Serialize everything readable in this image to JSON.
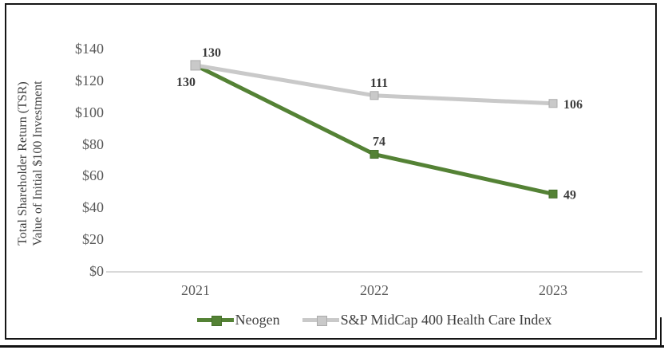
{
  "chart_data": {
    "type": "line",
    "title": "",
    "categories": [
      "2021",
      "2022",
      "2023"
    ],
    "series": [
      {
        "name": "Neogen",
        "values": [
          130,
          74,
          49
        ],
        "color": "#548235",
        "marker": "square",
        "marker_stroke": "#46702c",
        "label_placements": [
          "below-left",
          "above",
          "right"
        ]
      },
      {
        "name": "S&P MidCap 400 Health Care Index",
        "values": [
          130,
          111,
          106
        ],
        "color": "#c9c9c9",
        "marker": "square",
        "marker_stroke": "#ababab",
        "label_placements": [
          "above-right",
          "above",
          "right"
        ]
      }
    ],
    "data_labels": {
      "neogen": [
        "130",
        "74",
        "49"
      ],
      "sp_midcap": [
        "130",
        "111",
        "106"
      ]
    },
    "ylabel_lines": [
      "Total Shareholder Return (TSR)",
      "Value of Initial $100 Investment"
    ],
    "xlabel": "",
    "y_ticks": [
      {
        "label": "$0",
        "value": 0
      },
      {
        "label": "$20",
        "value": 20
      },
      {
        "label": "$40",
        "value": 40
      },
      {
        "label": "$60",
        "value": 60
      },
      {
        "label": "$80",
        "value": 80
      },
      {
        "label": "$100",
        "value": 100
      },
      {
        "label": "$120",
        "value": 120
      },
      {
        "label": "$140",
        "value": 140
      }
    ],
    "ylim": [
      0,
      140
    ],
    "grid": false,
    "legend_position": "bottom",
    "colors": {
      "axis_line": "#d9d9d9",
      "tick_label": "#595959",
      "data_label": "#3b3b3b",
      "axis_title": "#404040",
      "legend_text": "#404040",
      "chart_border": "#151515"
    }
  }
}
